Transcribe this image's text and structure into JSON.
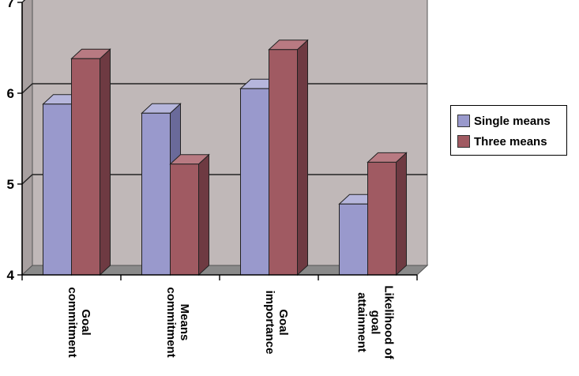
{
  "chart_data": {
    "type": "bar",
    "title": "",
    "xlabel": "",
    "ylabel": "",
    "categories": [
      "Goal commitment",
      "Means commitment",
      "Goal importance",
      "Likelihood of goal attainment"
    ],
    "category_lines": [
      [
        "Goal",
        "commitment"
      ],
      [
        "Means",
        "commitment"
      ],
      [
        "Goal",
        "importance"
      ],
      [
        "Likelihood of",
        "goal",
        "attainment"
      ]
    ],
    "series": [
      {
        "name": "Single means",
        "values": [
          5.88,
          5.78,
          6.05,
          4.78
        ]
      },
      {
        "name": "Three means",
        "values": [
          6.38,
          5.22,
          6.48,
          5.24
        ]
      }
    ],
    "ylim": [
      4,
      7
    ],
    "yticks": [
      "4",
      "5",
      "6",
      "7"
    ],
    "grid": true,
    "legend_position": "right",
    "colors": {
      "series": [
        "#9999cc",
        "#a05a62"
      ],
      "series_side": [
        "#6a6a9a",
        "#6e3a42"
      ],
      "series_top": [
        "#b6b6dc",
        "#b87a82"
      ],
      "wall": "#c0b8b8",
      "floor": "#8a8a8a"
    }
  }
}
